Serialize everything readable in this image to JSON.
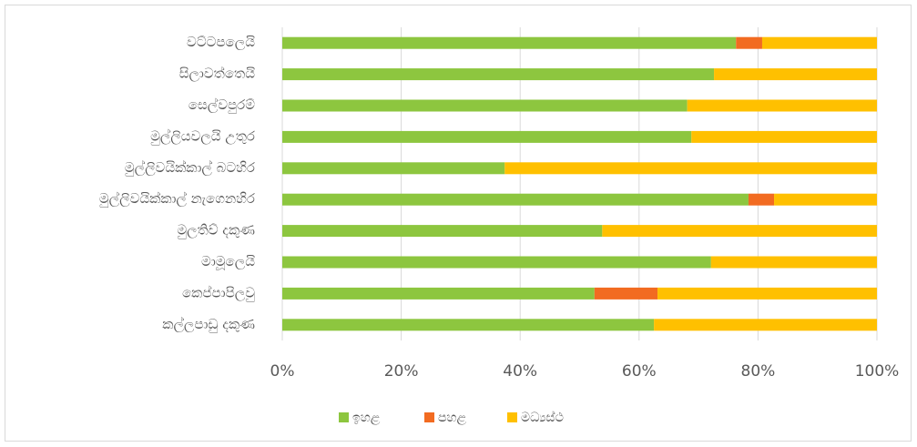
{
  "chart_data": {
    "type": "stacked_bar_horizontal",
    "categories": [
      "වට්ටපලෙයි",
      "සිලාවත්තෙයි",
      "සෙල්වපුරම්",
      "මුල්ලියවලයි උතුර",
      "මුල්ලිවයික්කාල් බටහිර",
      "මුල්ලිවයික්කාල් නැගෙනහිර",
      "මුලතිව් දකුණ",
      "මාමූලෙයි",
      "කෙප්පාපිලවු",
      "කල්ලපාඩු දකුණ"
    ],
    "series": [
      {
        "name": "ඉහළ",
        "color": "#8dc63f",
        "values": [
          76.3,
          72.6,
          68.1,
          68.8,
          37.4,
          78.4,
          53.8,
          72.1,
          52.5,
          62.5
        ]
      },
      {
        "name": "පහළ",
        "color": "#f26b21",
        "values": [
          4.4,
          0,
          0,
          0,
          0,
          4.3,
          0,
          0,
          10.6,
          0
        ]
      },
      {
        "name": "මධ්‍යස්ථ",
        "color": "#ffc000",
        "values": [
          19.3,
          27.4,
          31.9,
          31.2,
          62.6,
          17.3,
          46.2,
          27.9,
          36.9,
          37.5
        ]
      }
    ],
    "xlim": [
      0,
      100
    ],
    "xticks": [
      {
        "value": 0,
        "label": "0%"
      },
      {
        "value": 20,
        "label": "20%"
      },
      {
        "value": 40,
        "label": "40%"
      },
      {
        "value": 60,
        "label": "60%"
      },
      {
        "value": 80,
        "label": "80%"
      },
      {
        "value": 100,
        "label": "100%"
      }
    ],
    "grid": true,
    "legend": "bottom"
  }
}
